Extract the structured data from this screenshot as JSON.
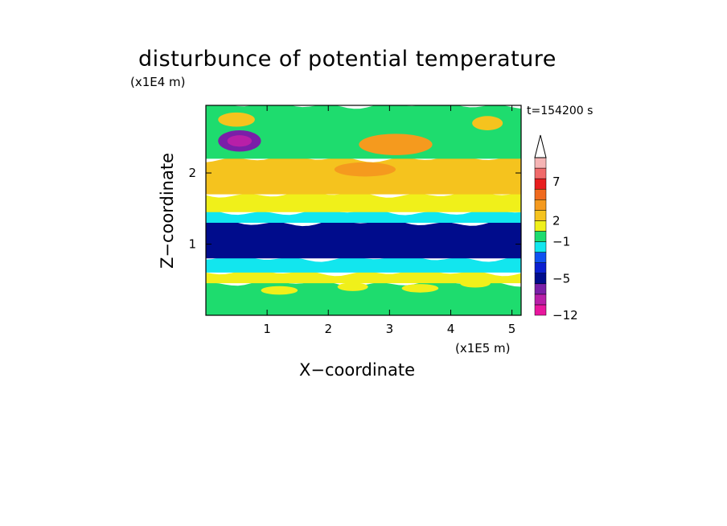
{
  "chart_data": {
    "type": "heatmap",
    "title": "disturbunce of potential temperature",
    "xlabel": "X−coordinate",
    "ylabel": "Z−coordinate",
    "x_unit": "(x1E5 m)",
    "y_unit": "(x1E4 m)",
    "time_label": "t=154200 s",
    "xlim": [
      0,
      5.15
    ],
    "ylim": [
      0,
      2.95
    ],
    "x_ticks": [
      "1",
      "2",
      "3",
      "4",
      "5"
    ],
    "y_ticks": [
      "1",
      "2"
    ],
    "x_tick_values": [
      1,
      2,
      3,
      4,
      5
    ],
    "y_tick_values": [
      1,
      2
    ],
    "colorbar": {
      "colors": [
        "#e8179e",
        "#b81fa8",
        "#7a1fa8",
        "#000c8c",
        "#0a1fd0",
        "#0f52f0",
        "#12e6ee",
        "#1edc6e",
        "#f0f01a",
        "#f5c31e",
        "#f59a1e",
        "#f06a1e",
        "#e81e1e",
        "#f06a6a",
        "#f5b4b4"
      ],
      "tick_labels": [
        "−12",
        "−5",
        "−1",
        "2",
        "7"
      ],
      "tick_values": [
        -12,
        -5,
        -1,
        2,
        7
      ]
    },
    "bands": [
      {
        "z": [
          0.0,
          0.45
        ],
        "level": 0,
        "description_color": "#1edc6e"
      },
      {
        "z": [
          0.45,
          0.6
        ],
        "level": 1
      },
      {
        "z": [
          0.6,
          0.8
        ],
        "level": -1
      },
      {
        "z": [
          0.8,
          1.3
        ],
        "level": -4
      },
      {
        "z": [
          1.3,
          1.45
        ],
        "level": -1
      },
      {
        "z": [
          1.45,
          1.7
        ],
        "level": 1
      },
      {
        "z": [
          1.7,
          2.2
        ],
        "level": 2
      },
      {
        "z": [
          2.2,
          2.95
        ],
        "level": 0
      }
    ],
    "features": [
      {
        "x": 0.55,
        "z": 2.45,
        "rx": 0.35,
        "rz": 0.15,
        "level": -5
      },
      {
        "x": 0.55,
        "z": 2.45,
        "rx": 0.2,
        "rz": 0.08,
        "level": -6
      },
      {
        "x": 3.1,
        "z": 2.4,
        "rx": 0.6,
        "rz": 0.15,
        "level": 3
      },
      {
        "x": 2.6,
        "z": 2.05,
        "rx": 0.5,
        "rz": 0.1,
        "level": 3
      },
      {
        "x": 0.5,
        "z": 2.75,
        "rx": 0.3,
        "rz": 0.1,
        "level": 2
      },
      {
        "x": 4.6,
        "z": 2.7,
        "rx": 0.25,
        "rz": 0.1,
        "level": 2
      },
      {
        "x": 1.2,
        "z": 0.35,
        "rx": 0.3,
        "rz": 0.06,
        "level": 1
      },
      {
        "x": 2.4,
        "z": 0.4,
        "rx": 0.25,
        "rz": 0.06,
        "level": 1
      },
      {
        "x": 3.5,
        "z": 0.38,
        "rx": 0.3,
        "rz": 0.06,
        "level": 1
      },
      {
        "x": 4.4,
        "z": 0.45,
        "rx": 0.25,
        "rz": 0.06,
        "level": 1
      }
    ]
  }
}
